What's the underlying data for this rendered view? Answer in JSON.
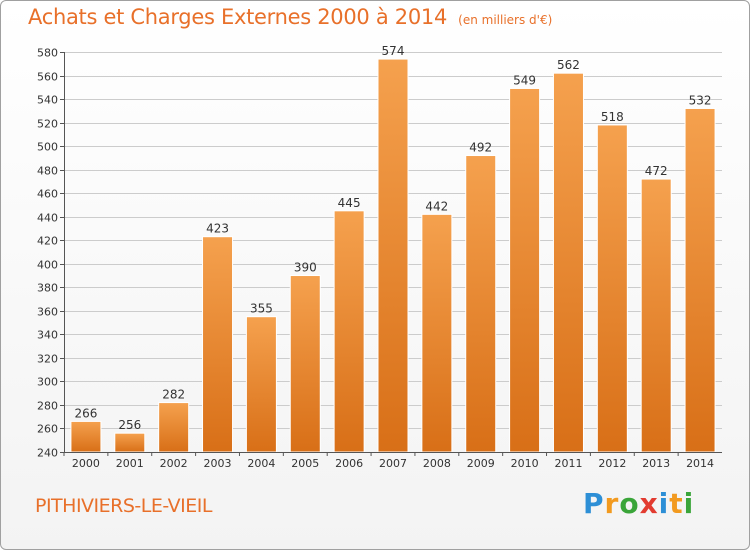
{
  "chart_data": {
    "type": "bar",
    "title": "Achats et Charges Externes 2000 à 2014",
    "subtitle": "(en milliers d'€)",
    "categories": [
      "2000",
      "2001",
      "2002",
      "2003",
      "2004",
      "2005",
      "2006",
      "2007",
      "2008",
      "2009",
      "2010",
      "2011",
      "2012",
      "2013",
      "2014"
    ],
    "values": [
      266,
      256,
      282,
      423,
      355,
      390,
      445,
      574,
      442,
      492,
      549,
      562,
      518,
      472,
      532
    ],
    "ylim": [
      240,
      580
    ],
    "yticks": [
      240,
      260,
      280,
      300,
      320,
      340,
      360,
      380,
      400,
      420,
      440,
      460,
      480,
      500,
      520,
      540,
      560,
      580
    ],
    "grid": true,
    "bar_color_top": "#f5a14e",
    "bar_color_bottom": "#d86f17",
    "grid_color": "#cccccc"
  },
  "footer": {
    "commune": "PITHIVIERS-LE-VIEIL",
    "brand_letters": [
      {
        "ch": "P",
        "color": "#2d8fd6"
      },
      {
        "ch": "r",
        "color": "#f29a1f"
      },
      {
        "ch": "o",
        "color": "#3aa539"
      },
      {
        "ch": "x",
        "color": "#e23b30"
      },
      {
        "ch": "i",
        "color": "#2d8fd6"
      },
      {
        "ch": "t",
        "color": "#f29a1f"
      },
      {
        "ch": "i",
        "color": "#3aa539"
      }
    ]
  },
  "colors": {
    "title": "#e8702a"
  }
}
